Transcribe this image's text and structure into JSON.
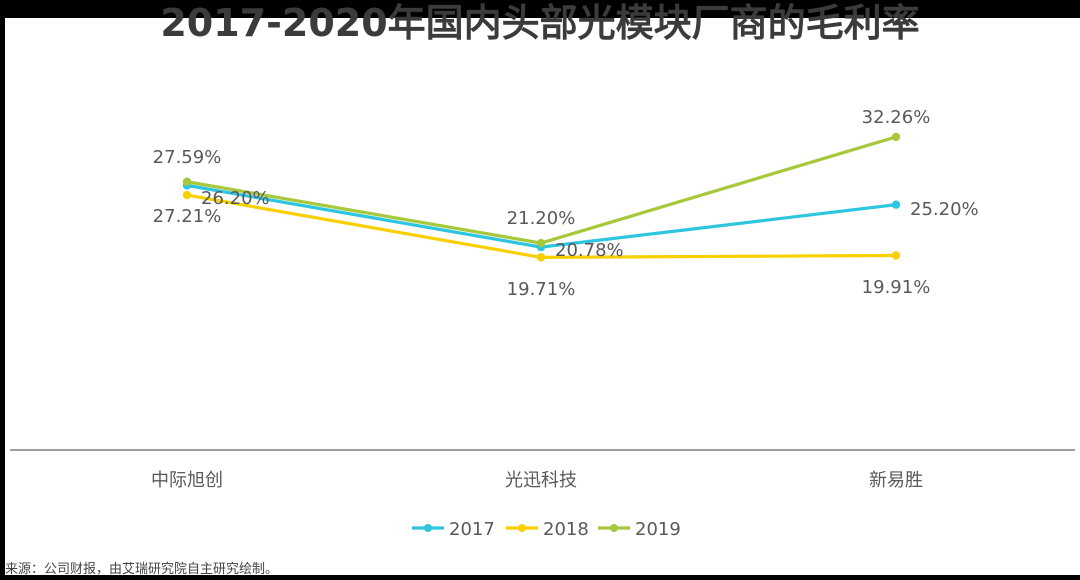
{
  "title": "2017-2020年国内头部光模块厂商的毛利率",
  "source": "来源：公司财报，由艾瑞研究院自主研究绘制。",
  "colors": {
    "2017": "#2ec5e0",
    "2018": "#f8d000",
    "2019": "#a6c83a",
    "axis": "#7f7f7f",
    "text": "#595959"
  },
  "chart_data": {
    "type": "line",
    "categories": [
      "中际旭创",
      "光迅科技",
      "新易胜"
    ],
    "series": [
      {
        "name": "2017",
        "values": [
          27.21,
          20.78,
          25.2
        ],
        "labels": [
          "27.21%",
          "20.78%",
          "25.20%"
        ]
      },
      {
        "name": "2018",
        "values": [
          26.2,
          19.71,
          19.91
        ],
        "labels": [
          "26.20%",
          "19.71%",
          "19.91%"
        ]
      },
      {
        "name": "2019",
        "values": [
          27.59,
          21.2,
          32.26
        ],
        "labels": [
          "27.59%",
          "21.20%",
          "32.26%"
        ]
      }
    ],
    "xlabel": "",
    "ylabel": "",
    "legend": "bottom",
    "grid": false
  }
}
